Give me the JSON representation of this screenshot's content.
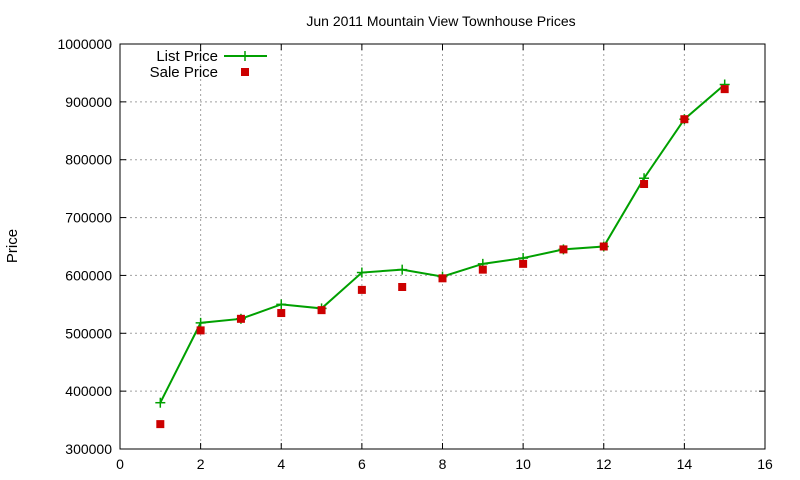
{
  "chart_data": {
    "type": "line",
    "title": "Jun 2011 Mountain View Townhouse Prices",
    "xlabel": "",
    "ylabel": "Price",
    "xlim": [
      0,
      16
    ],
    "ylim": [
      300000,
      1000000
    ],
    "xticks": [
      0,
      2,
      4,
      6,
      8,
      10,
      12,
      14,
      16
    ],
    "yticks": [
      300000,
      400000,
      500000,
      600000,
      700000,
      800000,
      900000,
      1000000
    ],
    "grid": true,
    "legend_position": "top-left",
    "series": [
      {
        "name": "List Price",
        "style": "line-points",
        "color": "#00a000",
        "x": [
          1,
          2,
          3,
          4,
          5,
          6,
          7,
          8,
          9,
          10,
          11,
          12,
          13,
          14,
          15
        ],
        "y": [
          380000,
          518000,
          525000,
          550000,
          543000,
          605000,
          610000,
          598000,
          620000,
          630000,
          645000,
          650000,
          768000,
          870000,
          930000
        ]
      },
      {
        "name": "Sale Price",
        "style": "points",
        "color": "#cc0000",
        "x": [
          1,
          2,
          3,
          4,
          5,
          6,
          7,
          8,
          9,
          10,
          11,
          12,
          13,
          14,
          15
        ],
        "y": [
          343000,
          505000,
          525000,
          535000,
          540000,
          575000,
          580000,
          595000,
          610000,
          620000,
          645000,
          650000,
          758000,
          870000,
          922000
        ]
      }
    ]
  }
}
